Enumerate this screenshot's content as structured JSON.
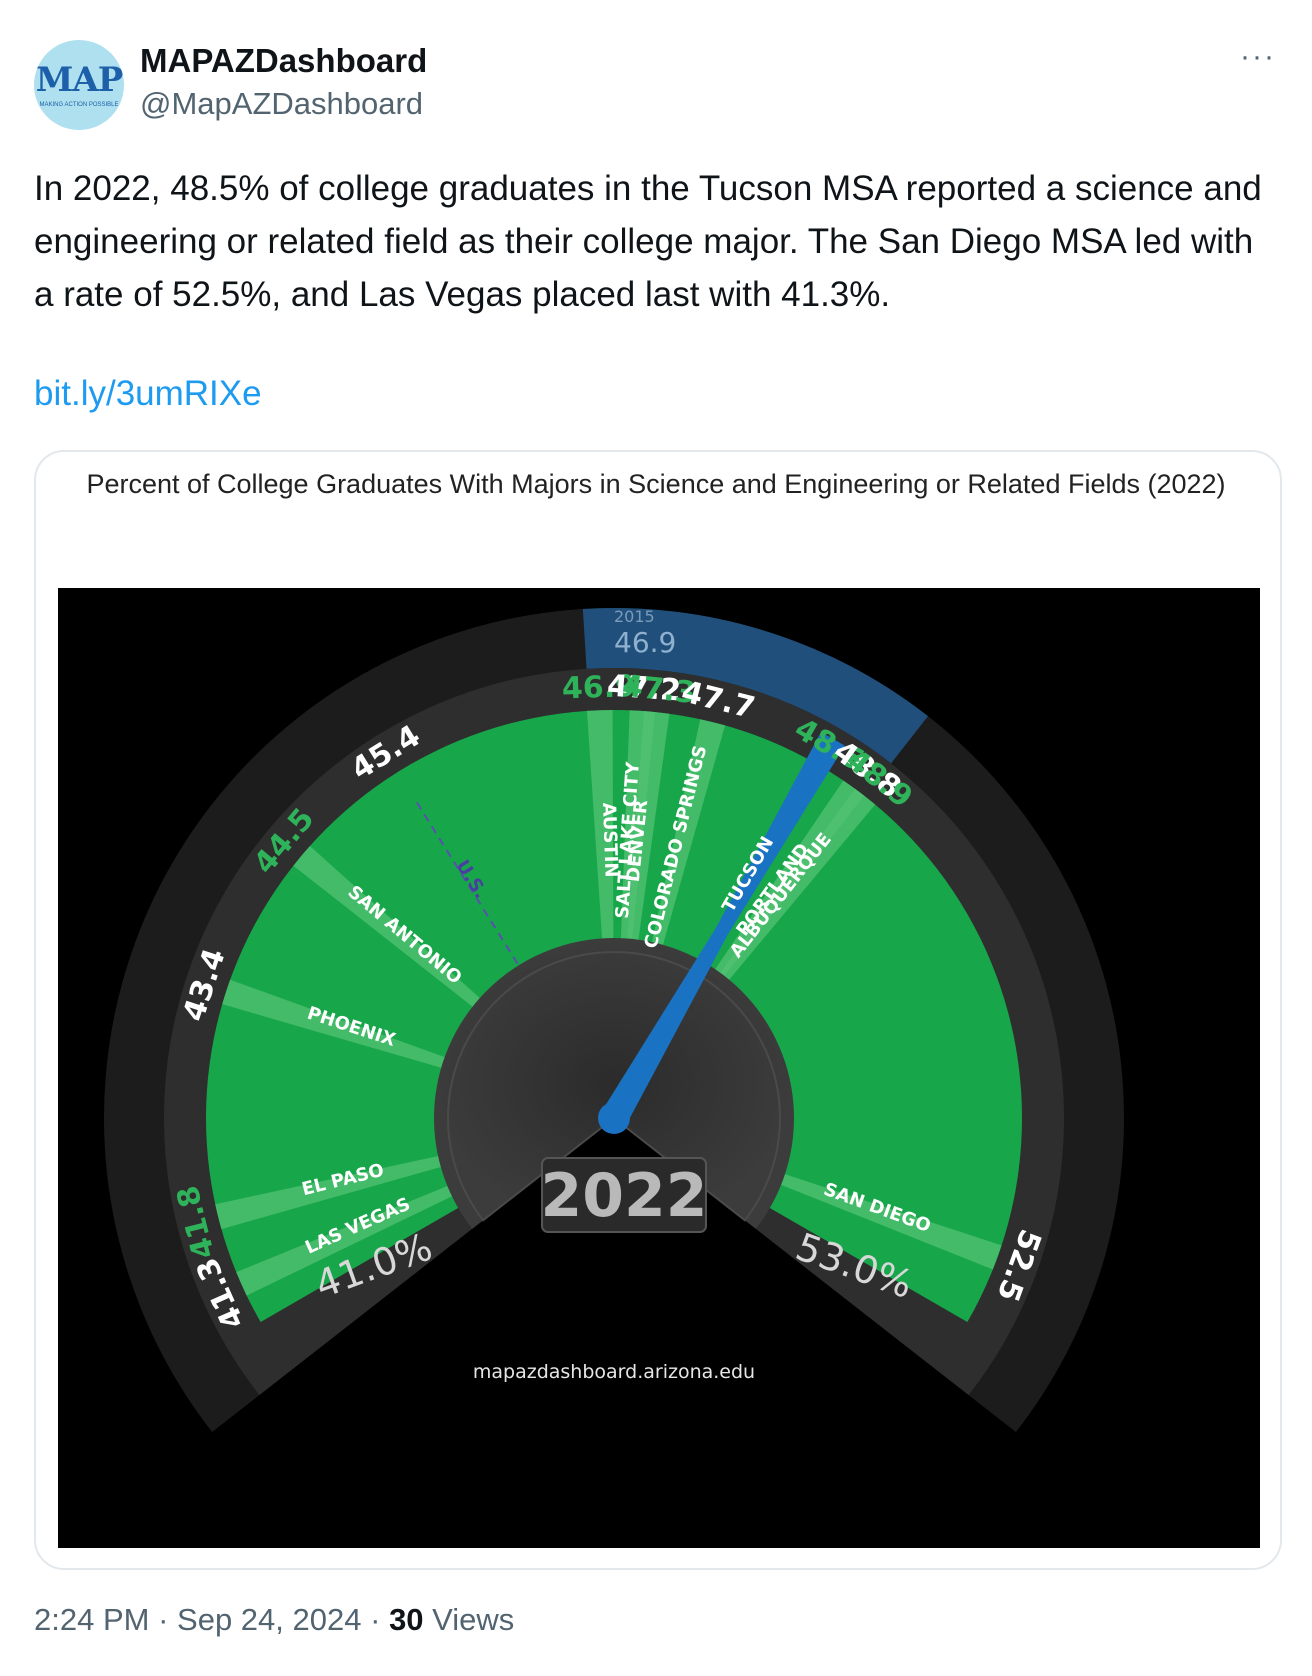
{
  "tweet": {
    "display_name": "MAPAZDashboard",
    "handle": "@MapAZDashboard",
    "avatar_text": "MAP",
    "avatar_tagline": "MAKING ACTION POSSIBLE",
    "more_label": "···",
    "text": "In 2022, 48.5% of college graduates in the Tucson MSA reported a science and engineering or related field as their college major. The San Diego MSA led with a rate of 52.5%, and Las Vegas placed last with 41.3%.",
    "link": "bit.ly/3umRIXe",
    "time": "2:24 PM",
    "date": "Sep 24, 2024",
    "views_count": "30",
    "views_label": "Views"
  },
  "colors": {
    "link": "#1d9bf0",
    "bar_green": "#18a64a",
    "bar_light_green": "#52c173",
    "highlight_blue": "#1a73c2",
    "band_blue": "#1f4f7a",
    "label_green": "#2fb35a"
  },
  "chart_data": {
    "type": "bar",
    "title": "Percent of College Graduates With Majors in Science and Engineering or Related Fields (2022)",
    "year": "2022",
    "axis_min_label": "41.0%",
    "axis_max_label": "53.0%",
    "ylim": [
      41.0,
      53.0
    ],
    "source": "mapazdashboard.arizona.edu",
    "categories": [
      "LAS VEGAS",
      "EL PASO",
      "PHOENIX",
      "SAN ANTONIO",
      "U.S.",
      "AUSTIN",
      "SALT LAKE CITY",
      "DENVER",
      "COLORADO SPRINGS",
      "TUCSON",
      "PORTLAND",
      "ALBUQUERQUE",
      "SAN DIEGO"
    ],
    "values": [
      41.3,
      41.8,
      43.4,
      44.5,
      45.4,
      46.9,
      47.2,
      47.3,
      47.7,
      48.5,
      48.8,
      48.9,
      52.5
    ],
    "value_labels": [
      "41.3",
      "41.8",
      "43.4",
      "44.5",
      "45.4",
      "46.9",
      "47.2",
      "47.3",
      "47.7",
      "48.5",
      "48.8",
      "48.9",
      "52.5"
    ],
    "highlight": "TUCSON",
    "reference": "U.S.",
    "tucson_2015": {
      "label": "2015",
      "value": 46.9,
      "value_label": "46.9"
    }
  }
}
